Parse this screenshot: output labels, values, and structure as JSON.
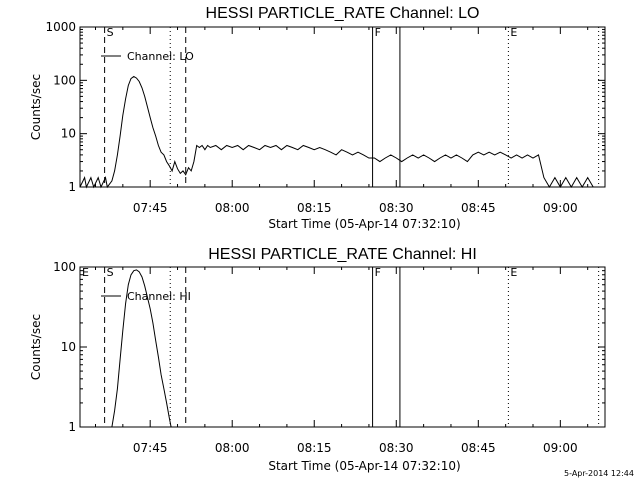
{
  "footer_stamp": "5-Apr-2014 12:44",
  "chart_data": [
    {
      "type": "line",
      "title": "HESSI PARTICLE_RATE Channel: LO",
      "xlabel": "Start Time (05-Apr-14 07:32:10)",
      "ylabel": "Counts/sec",
      "y_scale": "log",
      "ylim": [
        1,
        1000
      ],
      "xlim": [
        "07:32:10",
        "09:08:10"
      ],
      "x_tick_labels": [
        "07:45",
        "08:00",
        "08:15",
        "08:30",
        "08:45",
        "09:00"
      ],
      "y_tick_labels": [
        "1",
        "10",
        "100",
        "1000"
      ],
      "legend": "top-left",
      "series": [
        {
          "name": "Channel: LO",
          "x": [
            "07:32:10",
            "07:33:00",
            "07:33:20",
            "07:34:10",
            "07:34:40",
            "07:35:30",
            "07:36:00",
            "07:36:50",
            "07:37:10",
            "07:38:00",
            "07:38:30",
            "07:39:00",
            "07:39:30",
            "07:40:00",
            "07:40:30",
            "07:41:00",
            "07:41:30",
            "07:42:00",
            "07:42:30",
            "07:43:00",
            "07:43:30",
            "07:44:00",
            "07:44:30",
            "07:45:00",
            "07:45:30",
            "07:46:00",
            "07:46:30",
            "07:47:00",
            "07:47:30",
            "07:48:00",
            "07:48:30",
            "07:49:00",
            "07:49:30",
            "07:50:00",
            "07:50:30",
            "07:51:00",
            "07:51:30",
            "07:52:00",
            "07:52:30",
            "07:53:00",
            "07:53:30",
            "07:54:00",
            "07:54:30",
            "07:55:00",
            "07:55:30",
            "07:56:00",
            "07:57:00",
            "07:58:00",
            "07:59:00",
            "08:00:00",
            "08:01:00",
            "08:02:00",
            "08:03:00",
            "08:04:00",
            "08:05:00",
            "08:06:00",
            "08:07:00",
            "08:08:00",
            "08:09:00",
            "08:10:00",
            "08:11:00",
            "08:12:00",
            "08:13:00",
            "08:14:00",
            "08:15:00",
            "08:16:00",
            "08:17:00",
            "08:18:00",
            "08:19:00",
            "08:20:00",
            "08:21:00",
            "08:22:00",
            "08:23:00",
            "08:24:00",
            "08:25:00",
            "08:26:00",
            "08:27:00",
            "08:28:00",
            "08:29:00",
            "08:30:00",
            "08:31:00",
            "08:32:00",
            "08:33:00",
            "08:34:00",
            "08:35:00",
            "08:36:00",
            "08:37:00",
            "08:38:00",
            "08:39:00",
            "08:40:00",
            "08:41:00",
            "08:42:00",
            "08:43:00",
            "08:44:00",
            "08:45:00",
            "08:46:00",
            "08:47:00",
            "08:48:00",
            "08:49:00",
            "08:50:00",
            "08:51:00",
            "08:52:00",
            "08:53:00",
            "08:54:00",
            "08:55:00",
            "08:56:00",
            "08:57:00",
            "08:58:00",
            "08:59:00",
            "09:00:00",
            "09:01:00",
            "09:02:00",
            "09:03:00",
            "09:04:00",
            "09:05:00",
            "09:06:00"
          ],
          "y": [
            1,
            1.5,
            1,
            1.5,
            1,
            1.5,
            1,
            1.5,
            1,
            1.3,
            2,
            4,
            9,
            22,
            45,
            80,
            108,
            118,
            110,
            95,
            72,
            50,
            32,
            20,
            13,
            9,
            6,
            4.5,
            4,
            3,
            2.5,
            2,
            3,
            2.2,
            1.8,
            2,
            1.7,
            2.3,
            2,
            3,
            6,
            5.5,
            6,
            5,
            6,
            5.5,
            6,
            5,
            6,
            5.5,
            6,
            5,
            6,
            5.5,
            5,
            6,
            5.5,
            6,
            5,
            6,
            5.5,
            5,
            6,
            5.5,
            5,
            5.5,
            5,
            4.5,
            4,
            5,
            4.5,
            4,
            4.5,
            4,
            3.5,
            3.5,
            3,
            3.5,
            4,
            3.5,
            3,
            3.5,
            4,
            3.5,
            4,
            3.5,
            3,
            3.5,
            4,
            3.5,
            4,
            3.5,
            3,
            4,
            4.5,
            4,
            4.5,
            4,
            4.5,
            4,
            3.5,
            4,
            3.5,
            4,
            3.5,
            4,
            1.5,
            1,
            1.5,
            1,
            1.5,
            1,
            1.5,
            1,
            1.5,
            1
          ]
        }
      ],
      "markers": [
        {
          "label": "",
          "time": "07:32:10",
          "style": "dashed"
        },
        {
          "label": "S",
          "time": "07:36:40",
          "style": "dashed"
        },
        {
          "label": "",
          "time": "07:48:40",
          "style": "dotted"
        },
        {
          "label": "",
          "time": "07:51:30",
          "style": "dashed"
        },
        {
          "label": "F",
          "time": "08:25:40",
          "style": "solid"
        },
        {
          "label": "",
          "time": "08:30:40",
          "style": "solid"
        },
        {
          "label": "E",
          "time": "08:50:30",
          "style": "dotted"
        },
        {
          "label": "",
          "time": "09:07:00",
          "style": "dotted"
        }
      ]
    },
    {
      "type": "line",
      "title": "HESSI PARTICLE_RATE Channel: HI",
      "xlabel": "Start Time (05-Apr-14 07:32:10)",
      "ylabel": "Counts/sec",
      "y_scale": "log",
      "ylim": [
        1,
        100
      ],
      "xlim": [
        "07:32:10",
        "09:08:10"
      ],
      "x_tick_labels": [
        "07:45",
        "08:00",
        "08:15",
        "08:30",
        "08:45",
        "09:00"
      ],
      "y_tick_labels": [
        "1",
        "10",
        "100"
      ],
      "legend": "top-left",
      "series": [
        {
          "name": "Channel: HI",
          "x": [
            "07:38:00",
            "07:38:30",
            "07:39:00",
            "07:39:30",
            "07:40:00",
            "07:40:30",
            "07:41:00",
            "07:41:30",
            "07:42:00",
            "07:42:30",
            "07:43:00",
            "07:43:30",
            "07:44:00",
            "07:44:30",
            "07:45:00",
            "07:45:30",
            "07:46:00",
            "07:46:30",
            "07:47:00",
            "07:47:30",
            "07:48:00",
            "07:48:30",
            "07:48:50"
          ],
          "y": [
            1,
            1.6,
            3,
            7,
            16,
            35,
            60,
            80,
            90,
            92,
            87,
            75,
            58,
            42,
            30,
            20,
            12,
            7.5,
            4.5,
            3,
            2,
            1.3,
            1
          ]
        }
      ],
      "markers": [
        {
          "label": "E",
          "time": "07:32:10",
          "style": "dashed"
        },
        {
          "label": "S",
          "time": "07:36:40",
          "style": "dashed"
        },
        {
          "label": "",
          "time": "07:48:40",
          "style": "dotted"
        },
        {
          "label": "",
          "time": "07:51:30",
          "style": "dashed"
        },
        {
          "label": "F",
          "time": "08:25:40",
          "style": "solid"
        },
        {
          "label": "",
          "time": "08:30:40",
          "style": "solid"
        },
        {
          "label": "E",
          "time": "08:50:30",
          "style": "dotted"
        },
        {
          "label": "",
          "time": "09:07:00",
          "style": "dotted"
        }
      ]
    }
  ]
}
